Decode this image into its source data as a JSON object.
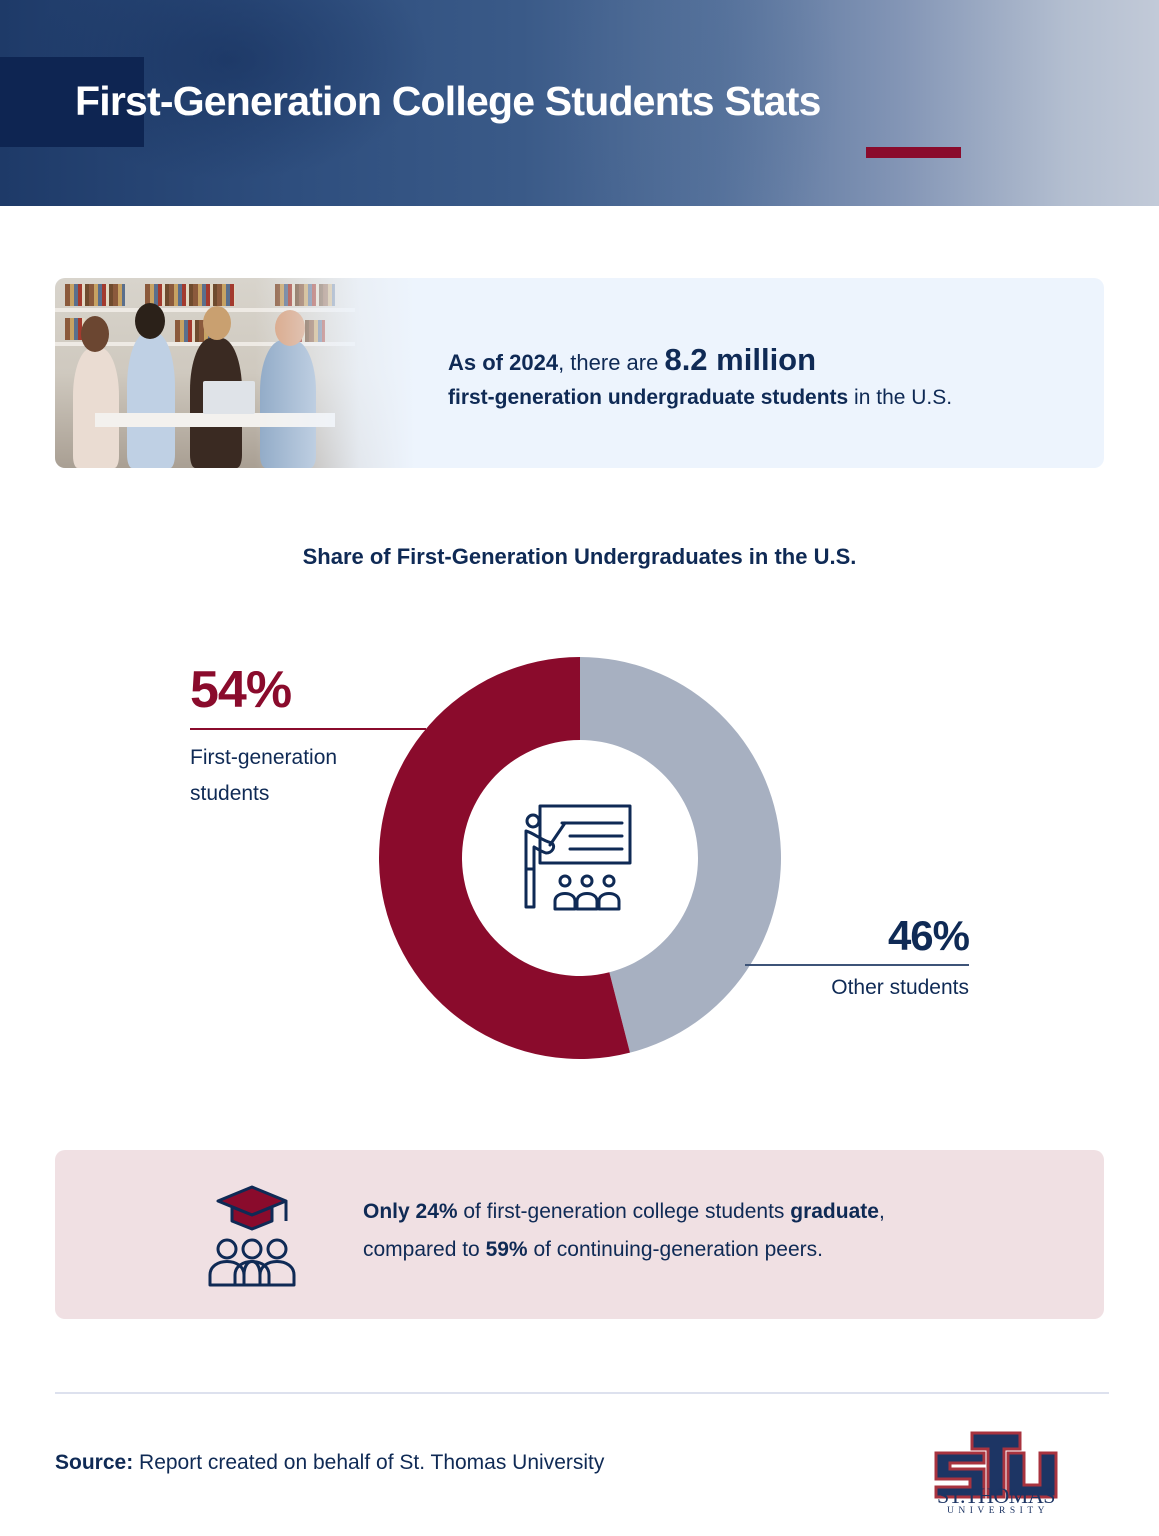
{
  "header": {
    "title": "First-Generation College Students Stats"
  },
  "stat_card": {
    "image_alt": "students-studying-photo",
    "line1_prefix": "As of 2024",
    "line1_middle": ", there are ",
    "line1_value": "8.2 million",
    "line2_bold": "first-generation undergraduate students",
    "line2_rest": " in the U.S."
  },
  "chart_data": {
    "type": "pie",
    "variant": "donut",
    "title": "Share of First-Generation Undergraduates in the U.S.",
    "categories": [
      "First-generation students",
      "Other students"
    ],
    "values": [
      54,
      46
    ],
    "unit": "%",
    "colors": [
      "#8a0b2c",
      "#a7b0c1"
    ],
    "labels": [
      {
        "value": "54%",
        "text_line1": "First-generation",
        "text_line2": "students",
        "position": "upper-left"
      },
      {
        "value": "46%",
        "text": "Other students",
        "position": "lower-right"
      }
    ],
    "center_icon": "teacher-presentation-icon"
  },
  "graduation_card": {
    "line1_bold_a": "Only 24%",
    "line1_mid": " of first-generation college students ",
    "line1_bold_b": "graduate",
    "line1_end": ",",
    "line2_start": "compared to ",
    "line2_bold": "59%",
    "line2_end": " of continuing-generation peers.",
    "icon": "graduation-cap-group-icon"
  },
  "footer": {
    "source_label": "Source:",
    "source_text": " Report created on behalf of St. Thomas University",
    "logo_mark": "STU",
    "logo_name": "ST.THOMAS",
    "logo_sub": "UNIVERSITY"
  },
  "colors": {
    "navy": "#0f2a55",
    "crimson": "#8a0b2c",
    "gray_slice": "#a7b0c1",
    "stat_card_bg": "#edf4fd",
    "grad_card_bg": "#f0e0e3"
  }
}
